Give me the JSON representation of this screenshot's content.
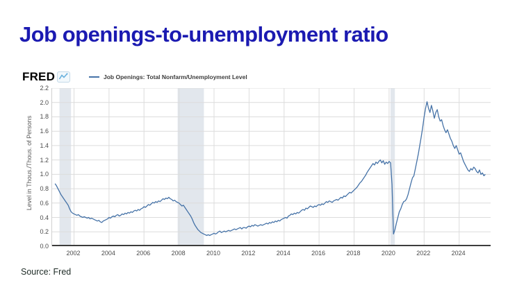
{
  "page": {
    "title": "Job openings-to-unemployment ratio",
    "source": "Source: Fred"
  },
  "chart": {
    "brand": "FRED",
    "legend_label": "Job Openings: Total Nonfarm/Unemployment Level",
    "y_axis_label": "Level in Thous./Thous. of Persons",
    "line_color": "#4572a7",
    "gridline_color": "#dcdcdc",
    "axis_line_color": "#3c3c3c",
    "recession_band_color": "#e2e7ed",
    "title_color": "#1b1ab1"
  },
  "chart_data": {
    "type": "line",
    "title": "Job Openings: Total Nonfarm/Unemployment Level",
    "ylabel": "Level in Thous./Thous. of Persons",
    "frequency": "monthly",
    "start_year": 2000,
    "start_month": 12,
    "ylim": [
      0.0,
      2.2
    ],
    "y_ticks": [
      0.0,
      0.2,
      0.4,
      0.6,
      0.8,
      1.0,
      1.2,
      1.4,
      1.6,
      1.8,
      2.0,
      2.2
    ],
    "x_ticks": [
      2002,
      2004,
      2006,
      2008,
      2010,
      2012,
      2014,
      2016,
      2018,
      2020,
      2022,
      2024
    ],
    "x_domain": [
      2000.75,
      2025.8
    ],
    "grid": true,
    "legend_position": "top-left",
    "recessions": [
      [
        2001.17,
        2001.83
      ],
      [
        2007.92,
        2009.42
      ],
      [
        2020.08,
        2020.33
      ]
    ],
    "values": [
      0.87,
      0.84,
      0.8,
      0.76,
      0.72,
      0.69,
      0.66,
      0.63,
      0.6,
      0.57,
      0.52,
      0.48,
      0.46,
      0.45,
      0.44,
      0.43,
      0.44,
      0.42,
      0.41,
      0.4,
      0.41,
      0.4,
      0.39,
      0.4,
      0.38,
      0.39,
      0.38,
      0.37,
      0.36,
      0.35,
      0.36,
      0.34,
      0.33,
      0.35,
      0.36,
      0.37,
      0.38,
      0.4,
      0.39,
      0.41,
      0.42,
      0.41,
      0.43,
      0.44,
      0.42,
      0.43,
      0.45,
      0.44,
      0.46,
      0.45,
      0.47,
      0.46,
      0.48,
      0.47,
      0.49,
      0.5,
      0.49,
      0.51,
      0.5,
      0.52,
      0.53,
      0.55,
      0.54,
      0.56,
      0.58,
      0.57,
      0.59,
      0.61,
      0.6,
      0.62,
      0.61,
      0.63,
      0.62,
      0.64,
      0.66,
      0.65,
      0.67,
      0.66,
      0.68,
      0.66,
      0.65,
      0.63,
      0.64,
      0.62,
      0.61,
      0.6,
      0.58,
      0.56,
      0.57,
      0.54,
      0.51,
      0.48,
      0.45,
      0.42,
      0.38,
      0.33,
      0.29,
      0.26,
      0.23,
      0.21,
      0.19,
      0.18,
      0.17,
      0.16,
      0.15,
      0.16,
      0.15,
      0.16,
      0.17,
      0.18,
      0.17,
      0.18,
      0.2,
      0.21,
      0.19,
      0.2,
      0.21,
      0.2,
      0.21,
      0.22,
      0.21,
      0.22,
      0.23,
      0.24,
      0.23,
      0.24,
      0.25,
      0.26,
      0.24,
      0.26,
      0.26,
      0.25,
      0.27,
      0.28,
      0.27,
      0.29,
      0.28,
      0.3,
      0.29,
      0.28,
      0.29,
      0.3,
      0.29,
      0.3,
      0.31,
      0.32,
      0.31,
      0.33,
      0.32,
      0.34,
      0.33,
      0.35,
      0.34,
      0.36,
      0.35,
      0.37,
      0.38,
      0.39,
      0.4,
      0.39,
      0.42,
      0.43,
      0.45,
      0.44,
      0.46,
      0.45,
      0.47,
      0.46,
      0.48,
      0.5,
      0.51,
      0.5,
      0.53,
      0.52,
      0.54,
      0.56,
      0.55,
      0.54,
      0.56,
      0.55,
      0.57,
      0.58,
      0.57,
      0.59,
      0.58,
      0.6,
      0.62,
      0.61,
      0.63,
      0.62,
      0.61,
      0.63,
      0.64,
      0.65,
      0.64,
      0.66,
      0.68,
      0.67,
      0.7,
      0.69,
      0.71,
      0.73,
      0.75,
      0.74,
      0.76,
      0.78,
      0.8,
      0.82,
      0.85,
      0.88,
      0.9,
      0.93,
      0.96,
      0.99,
      1.03,
      1.06,
      1.09,
      1.12,
      1.15,
      1.13,
      1.17,
      1.15,
      1.18,
      1.2,
      1.16,
      1.19,
      1.14,
      1.17,
      1.15,
      1.18,
      1.16,
      0.86,
      0.17,
      0.23,
      0.32,
      0.4,
      0.48,
      0.52,
      0.58,
      0.62,
      0.63,
      0.66,
      0.72,
      0.8,
      0.88,
      0.95,
      0.98,
      1.08,
      1.18,
      1.28,
      1.4,
      1.52,
      1.65,
      1.8,
      1.92,
      2.01,
      1.92,
      1.86,
      1.96,
      1.88,
      1.78,
      1.86,
      1.9,
      1.8,
      1.74,
      1.76,
      1.68,
      1.62,
      1.58,
      1.62,
      1.56,
      1.5,
      1.46,
      1.4,
      1.36,
      1.4,
      1.34,
      1.28,
      1.3,
      1.24,
      1.18,
      1.14,
      1.1,
      1.06,
      1.04,
      1.08,
      1.06,
      1.1,
      1.08,
      1.04,
      1.02,
      1.06,
      1.0,
      1.02,
      0.98,
      1.0
    ]
  }
}
